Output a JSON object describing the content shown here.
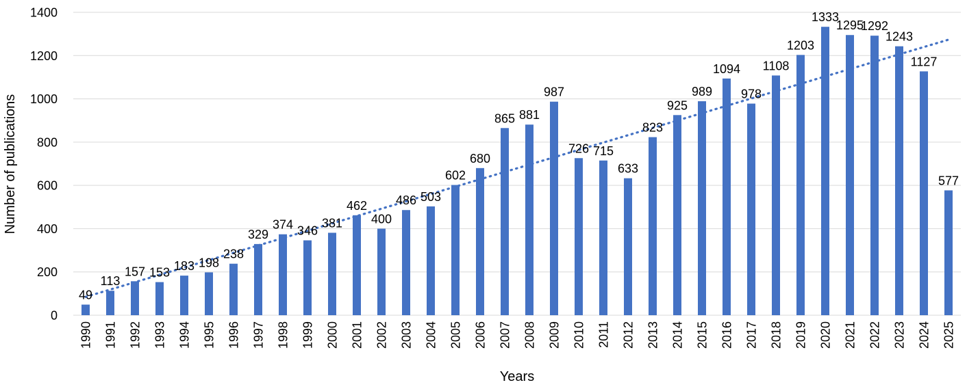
{
  "chart_data": {
    "type": "bar",
    "title": "",
    "xlabel": "Years",
    "ylabel": "Number of publications",
    "ylim": [
      0,
      1400
    ],
    "ytick_step": 200,
    "yticks": [
      "0",
      "200",
      "400",
      "600",
      "800",
      "1000",
      "1200",
      "1400"
    ],
    "grid": true,
    "legend": "none",
    "colors": {
      "bar": "#4472c4",
      "trendline": "#4472c4"
    },
    "trendline": {
      "type": "linear",
      "style": "dotted"
    },
    "categories": [
      "1990",
      "1991",
      "1992",
      "1993",
      "1994",
      "1995",
      "1996",
      "1997",
      "1998",
      "1999",
      "2000",
      "2001",
      "2002",
      "2003",
      "2004",
      "2005",
      "2006",
      "2007",
      "2008",
      "2009",
      "2010",
      "2011",
      "2012",
      "2013",
      "2014",
      "2015",
      "2016",
      "2017",
      "2018",
      "2019",
      "2020",
      "2021",
      "2022",
      "2023",
      "2024",
      "2025"
    ],
    "values": [
      49,
      113,
      157,
      153,
      183,
      198,
      238,
      329,
      374,
      346,
      381,
      462,
      400,
      486,
      503,
      602,
      680,
      865,
      881,
      987,
      726,
      715,
      633,
      823,
      925,
      989,
      1094,
      978,
      1108,
      1203,
      1333,
      1295,
      1292,
      1243,
      1127,
      577
    ],
    "data_labels": [
      "49",
      "113",
      "157",
      "153",
      "183",
      "198",
      "238",
      "329",
      "374",
      "346",
      "381",
      "462",
      "400",
      "486",
      "503",
      "602",
      "680",
      "865",
      "881",
      "987",
      "726",
      "715",
      "633",
      "823",
      "925",
      "989",
      "1094",
      "978",
      "1108",
      "1203",
      "1333",
      "1295",
      "1292",
      "1243",
      "1127",
      "577"
    ]
  }
}
